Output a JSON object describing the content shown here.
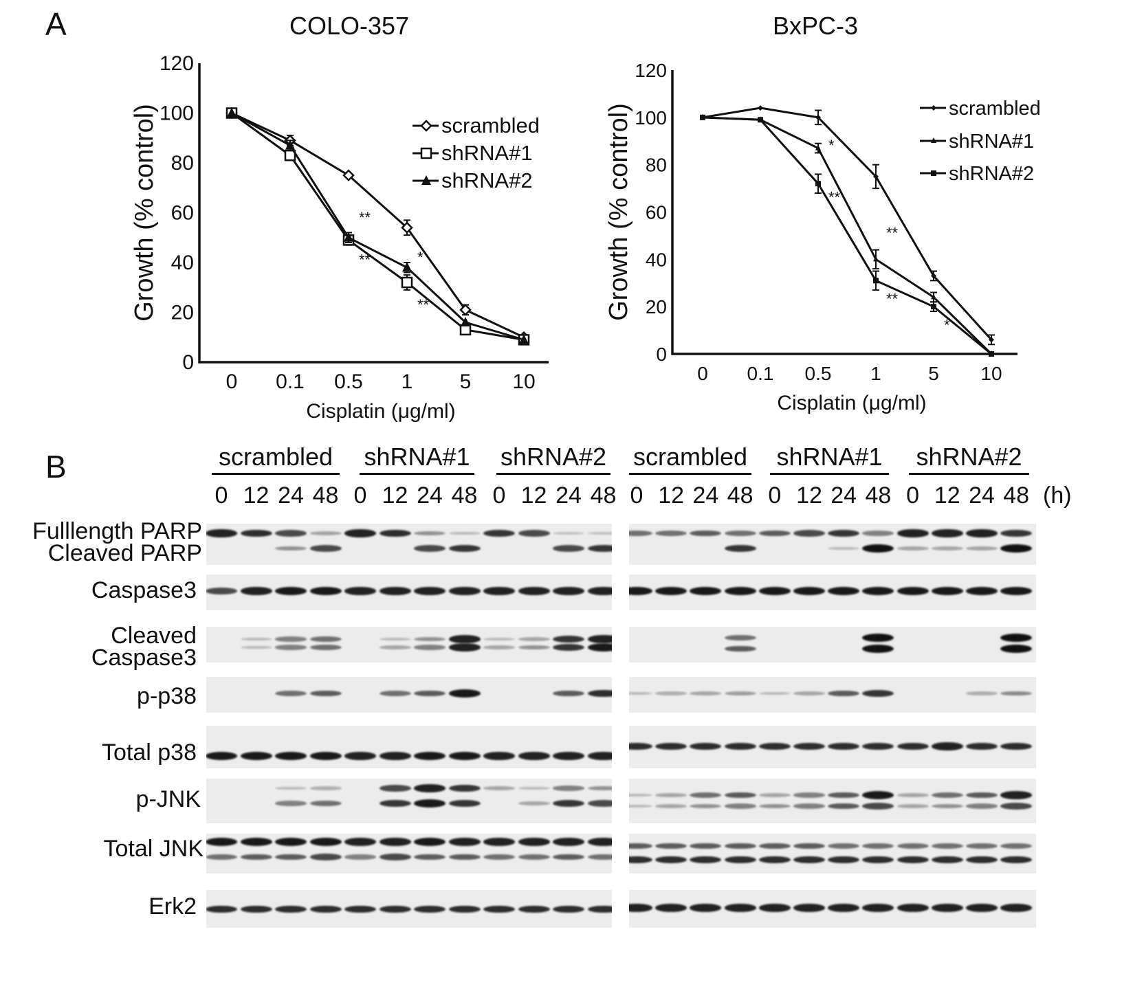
{
  "panels": {
    "a_letter": "A",
    "b_letter": "B"
  },
  "chart_data": [
    {
      "type": "line",
      "title": "COLO-357",
      "xlabel": "Cisplatin (μg/ml)",
      "ylabel": "Growth (% control)",
      "categories": [
        "0",
        "0.1",
        "0.5",
        "1",
        "5",
        "10"
      ],
      "ylim": [
        0,
        120
      ],
      "yticks": [
        "0",
        "20",
        "40",
        "60",
        "80",
        "100",
        "120"
      ],
      "legend_position": "top-right",
      "series": [
        {
          "name": "scrambled",
          "marker": "open-diamond",
          "values": [
            100,
            89,
            75,
            54,
            21,
            10
          ],
          "errors": [
            1,
            2,
            1,
            3,
            2,
            1
          ]
        },
        {
          "name": "shRNA#1",
          "marker": "open-square",
          "values": [
            100,
            83,
            49,
            32,
            13,
            9
          ],
          "errors": [
            1,
            2,
            2,
            3,
            1,
            1
          ]
        },
        {
          "name": "shRNA#2",
          "marker": "filled-triangle",
          "values": [
            100,
            87,
            50,
            38,
            16,
            9
          ],
          "errors": [
            1,
            2,
            2,
            2,
            1,
            1
          ]
        }
      ],
      "annotations": [
        {
          "text": "**",
          "x": "0.5",
          "y": 56
        },
        {
          "text": "**",
          "x": "0.5",
          "y": 39
        },
        {
          "text": "*",
          "x": "1",
          "y": 40
        },
        {
          "text": "**",
          "x": "1",
          "y": 21
        }
      ]
    },
    {
      "type": "line",
      "title": "BxPC-3",
      "xlabel": "Cisplatin (μg/ml)",
      "ylabel": "Growth (% control)",
      "categories": [
        "0",
        "0.1",
        "0.5",
        "1",
        "5",
        "10"
      ],
      "ylim": [
        0,
        120
      ],
      "yticks": [
        "0",
        "20",
        "40",
        "60",
        "80",
        "100",
        "120"
      ],
      "legend_position": "top-right",
      "series": [
        {
          "name": "scrambled",
          "marker": "small-diamond",
          "values": [
            100,
            104,
            100,
            75,
            33,
            6
          ],
          "errors": [
            1,
            1,
            3,
            5,
            2,
            2
          ]
        },
        {
          "name": "shRNA#1",
          "marker": "small-triangle",
          "values": [
            100,
            99,
            87,
            40,
            24,
            0
          ],
          "errors": [
            1,
            1,
            2,
            4,
            2,
            1
          ]
        },
        {
          "name": "shRNA#2",
          "marker": "small-square",
          "values": [
            100,
            99,
            72,
            31,
            20,
            0
          ],
          "errors": [
            1,
            1,
            4,
            4,
            2,
            1
          ]
        }
      ],
      "annotations": [
        {
          "text": "*",
          "x": "0.5",
          "y": 86
        },
        {
          "text": "**",
          "x": "0.5",
          "y": 64
        },
        {
          "text": "**",
          "x": "1",
          "y": 49
        },
        {
          "text": "**",
          "x": "1",
          "y": 21
        },
        {
          "text": "*",
          "x": "5",
          "y": 10
        }
      ]
    }
  ],
  "blot": {
    "groups_left": [
      "scrambled",
      "shRNA#1",
      "shRNA#2"
    ],
    "groups_right": [
      "scrambled",
      "shRNA#1",
      "shRNA#2"
    ],
    "timepoints": [
      "0",
      "12",
      "24",
      "48"
    ],
    "hours_unit": "(h)",
    "rows": [
      {
        "label": "Fulllength PARP",
        "label2": "Cleaved PARP"
      },
      {
        "label": "Caspase3"
      },
      {
        "label": "Cleaved",
        "label2": "Caspase3"
      },
      {
        "label": "p-p38"
      },
      {
        "label": "Total p38"
      },
      {
        "label": "p-JNK"
      },
      {
        "label": "Total JNK"
      },
      {
        "label": "Erk2"
      }
    ]
  }
}
